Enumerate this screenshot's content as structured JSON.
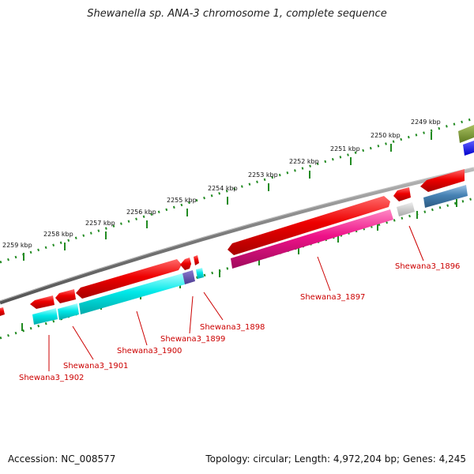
{
  "title": "Shewanella sp. ANA-3 chromosome 1, complete sequence",
  "accession": "Accession: NC_008577",
  "topology": "Topology: circular; Length: 4,972,204 bp; Genes: 4,245",
  "colors": {
    "backbone": "#888888",
    "ticks": "#228b22",
    "forward_cds": "#ee0000",
    "reverse_cyan": "#00eeee",
    "reverse_magenta": "#ee1188",
    "reverse_steel": "#4682b4",
    "label": "#cc0000"
  },
  "kbp_markers": [
    {
      "label": "2249 kbp"
    },
    {
      "label": "2250 kbp"
    },
    {
      "label": "2251 kbp"
    },
    {
      "label": "2252 kbp"
    },
    {
      "label": "2253 kbp"
    },
    {
      "label": "2254 kbp"
    },
    {
      "label": "2255 kbp"
    },
    {
      "label": "2256 kbp"
    },
    {
      "label": "2257 kbp"
    },
    {
      "label": "2258 kbp"
    },
    {
      "label": "2259 kbp"
    }
  ],
  "gene_labels": [
    {
      "text": "Shewana3_1896"
    },
    {
      "text": "Shewana3_1897"
    },
    {
      "text": "Shewana3_1898"
    },
    {
      "text": "Shewana3_1899"
    },
    {
      "text": "Shewana3_1900"
    },
    {
      "text": "Shewana3_1901"
    },
    {
      "text": "Shewana3_1902"
    }
  ]
}
